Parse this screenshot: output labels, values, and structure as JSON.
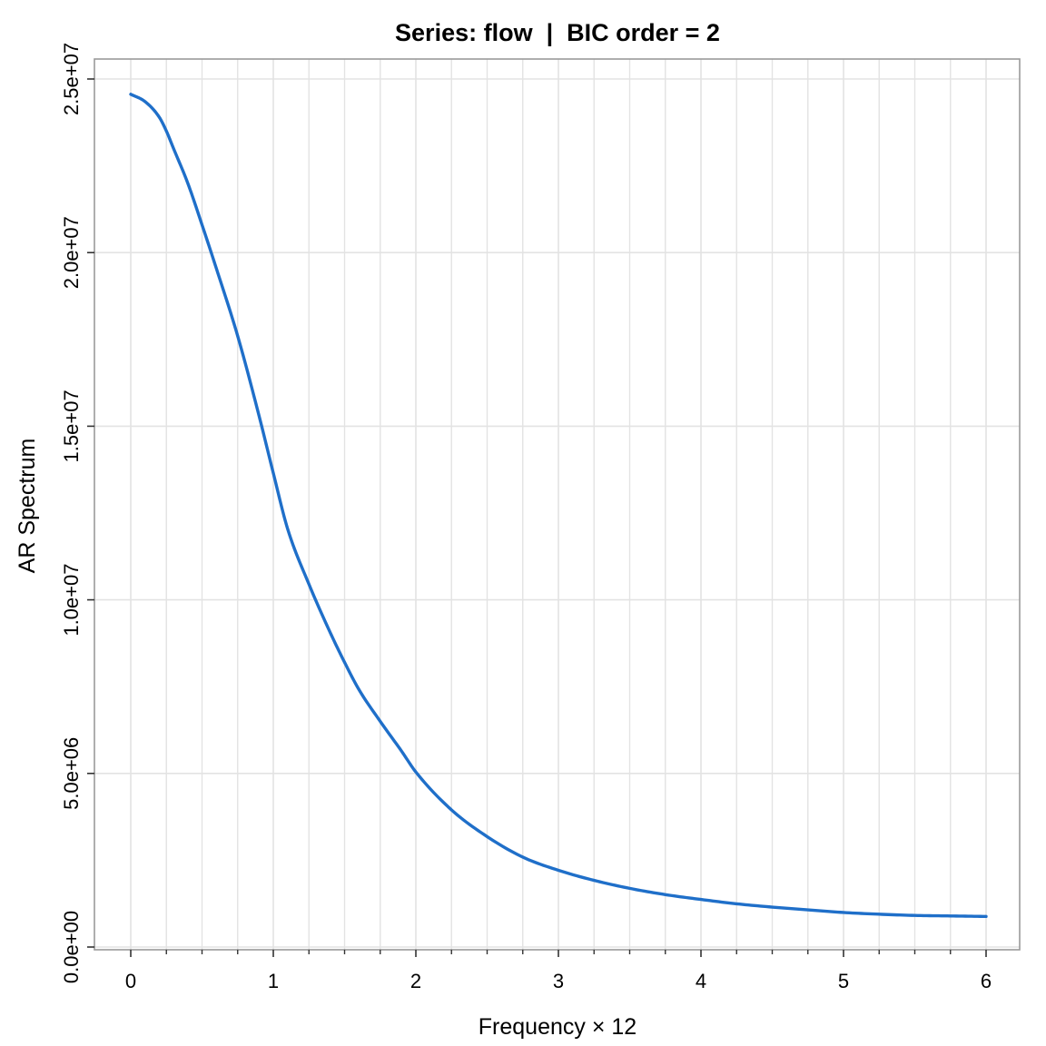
{
  "chart_data": {
    "type": "line",
    "title": "Series: flow  |  BIC order = 2",
    "xlabel": "Frequency × 12",
    "ylabel": "AR Spectrum",
    "xlim": [
      0,
      6
    ],
    "ylim": [
      0,
      25000000
    ],
    "x_ticks": [
      0,
      1,
      2,
      3,
      4,
      5,
      6
    ],
    "x_tick_labels": [
      "0",
      "1",
      "2",
      "3",
      "4",
      "5",
      "6"
    ],
    "x_minor_ticks": [
      0.25,
      0.5,
      0.75,
      1.25,
      1.5,
      1.75,
      2.25,
      2.5,
      2.75,
      3.25,
      3.5,
      3.75,
      4.25,
      4.5,
      4.75,
      5.25,
      5.5,
      5.75
    ],
    "y_ticks": [
      0,
      5000000,
      10000000,
      15000000,
      20000000,
      25000000
    ],
    "y_tick_labels": [
      "0.0e+00",
      "5.0e+06",
      "1.0e+07",
      "1.5e+07",
      "2.0e+07",
      "2.5e+07"
    ],
    "grid": true,
    "legend": "none",
    "colors": {
      "line": "#1f6fc9",
      "grid": "#e3e3e3",
      "frame": "#9a9a9a"
    },
    "series": [
      {
        "x": [
          0,
          0.1,
          0.2,
          0.25,
          0.3,
          0.4,
          0.5,
          0.6,
          0.75,
          0.9,
          1.0,
          1.1,
          1.25,
          1.4,
          1.5,
          1.6,
          1.75,
          1.9,
          2.0,
          2.25,
          2.5,
          2.75,
          3.0,
          3.25,
          3.5,
          3.75,
          4.0,
          4.25,
          4.5,
          4.75,
          5.0,
          5.25,
          5.5,
          5.75,
          6.0
        ],
        "y": [
          24560000,
          24350000,
          23900000,
          23500000,
          23000000,
          22000000,
          20800000,
          19550000,
          17600000,
          15300000,
          13650000,
          12050000,
          10450000,
          9050000,
          8200000,
          7420000,
          6500000,
          5640000,
          5040000,
          3950000,
          3180000,
          2590000,
          2210000,
          1920000,
          1690000,
          1510000,
          1370000,
          1245000,
          1150000,
          1070000,
          995000,
          945000,
          910000,
          895000,
          880000
        ]
      }
    ]
  }
}
